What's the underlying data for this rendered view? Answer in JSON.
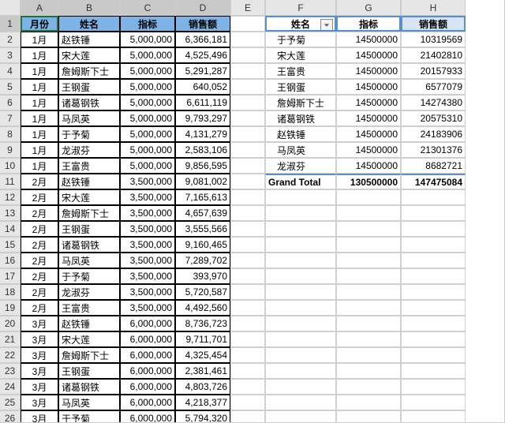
{
  "columns": [
    "A",
    "B",
    "C",
    "D",
    "E",
    "F",
    "G",
    "H"
  ],
  "col_widths": {
    "A": 48,
    "B": 78,
    "C": 70,
    "D": 70,
    "E": 44,
    "F": 90,
    "G": 82,
    "H": 82
  },
  "selected_row": 1,
  "colors": {
    "left_header_bg": "#7fb2e5",
    "pivot_border": "#5b8fc8",
    "pivot_sales_bg": "#d6e4f4",
    "header_strip_bg": "#e6e6e6",
    "selection_outline": "#217346"
  },
  "left_table": {
    "header": {
      "col0": "月份",
      "col1": "姓名",
      "col2": "指标",
      "col3": "销售额"
    },
    "rows": [
      {
        "m": "1月",
        "n": "赵铁锤",
        "t": "5,000,000",
        "s": "6,366,181"
      },
      {
        "m": "1月",
        "n": "宋大莲",
        "t": "5,000,000",
        "s": "4,525,496"
      },
      {
        "m": "1月",
        "n": "詹姆斯下士",
        "t": "5,000,000",
        "s": "5,291,287"
      },
      {
        "m": "1月",
        "n": "王钢蛋",
        "t": "5,000,000",
        "s": "640,052"
      },
      {
        "m": "1月",
        "n": "诸葛钢铁",
        "t": "5,000,000",
        "s": "6,611,119"
      },
      {
        "m": "1月",
        "n": "马凤英",
        "t": "5,000,000",
        "s": "9,793,297"
      },
      {
        "m": "1月",
        "n": "于予菊",
        "t": "5,000,000",
        "s": "4,131,279"
      },
      {
        "m": "1月",
        "n": "龙淑芬",
        "t": "5,000,000",
        "s": "2,583,106"
      },
      {
        "m": "1月",
        "n": "王富贵",
        "t": "5,000,000",
        "s": "9,856,595"
      },
      {
        "m": "2月",
        "n": "赵铁锤",
        "t": "3,500,000",
        "s": "9,081,002"
      },
      {
        "m": "2月",
        "n": "宋大莲",
        "t": "3,500,000",
        "s": "7,165,613"
      },
      {
        "m": "2月",
        "n": "詹姆斯下士",
        "t": "3,500,000",
        "s": "4,657,639"
      },
      {
        "m": "2月",
        "n": "王钢蛋",
        "t": "3,500,000",
        "s": "3,555,566"
      },
      {
        "m": "2月",
        "n": "诸葛钢铁",
        "t": "3,500,000",
        "s": "9,160,465"
      },
      {
        "m": "2月",
        "n": "马凤英",
        "t": "3,500,000",
        "s": "7,289,702"
      },
      {
        "m": "2月",
        "n": "于予菊",
        "t": "3,500,000",
        "s": "393,970"
      },
      {
        "m": "2月",
        "n": "龙淑芬",
        "t": "3,500,000",
        "s": "5,720,587"
      },
      {
        "m": "2月",
        "n": "王富贵",
        "t": "3,500,000",
        "s": "4,492,560"
      },
      {
        "m": "3月",
        "n": "赵铁锤",
        "t": "6,000,000",
        "s": "8,736,723"
      },
      {
        "m": "3月",
        "n": "宋大莲",
        "t": "6,000,000",
        "s": "9,711,701"
      },
      {
        "m": "3月",
        "n": "詹姆斯下士",
        "t": "6,000,000",
        "s": "4,325,454"
      },
      {
        "m": "3月",
        "n": "王钢蛋",
        "t": "6,000,000",
        "s": "2,381,461"
      },
      {
        "m": "3月",
        "n": "诸葛钢铁",
        "t": "6,000,000",
        "s": "4,803,726"
      },
      {
        "m": "3月",
        "n": "马凤英",
        "t": "6,000,000",
        "s": "4,218,377"
      },
      {
        "m": "3月",
        "n": "于予菊",
        "t": "6,000,000",
        "s": "5,794,320"
      }
    ]
  },
  "pivot": {
    "header": {
      "name": "姓名",
      "target": "指标",
      "sales": "销售额"
    },
    "rows": [
      {
        "n": "于予菊",
        "t": "14500000",
        "s": "10319569"
      },
      {
        "n": "宋大莲",
        "t": "14500000",
        "s": "21402810"
      },
      {
        "n": "王富贵",
        "t": "14500000",
        "s": "20157933"
      },
      {
        "n": "王钢蛋",
        "t": "14500000",
        "s": "6577079"
      },
      {
        "n": "詹姆斯下士",
        "t": "14500000",
        "s": "14274380"
      },
      {
        "n": "诸葛钢铁",
        "t": "14500000",
        "s": "20575310"
      },
      {
        "n": "赵铁锤",
        "t": "14500000",
        "s": "24183906"
      },
      {
        "n": "马凤英",
        "t": "14500000",
        "s": "21301376"
      },
      {
        "n": "龙淑芬",
        "t": "14500000",
        "s": "8682721"
      }
    ],
    "total": {
      "label": "Grand Total",
      "t": "130500000",
      "s": "147475084"
    }
  }
}
